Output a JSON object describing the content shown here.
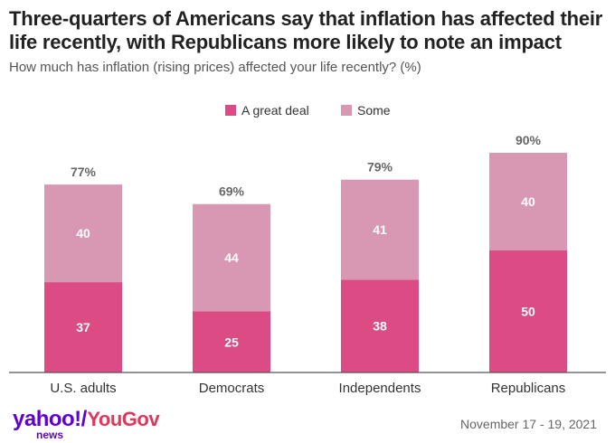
{
  "title": "Three-quarters of Americans say that inflation has affected their life recently, with Republicans more likely to note an impact",
  "subtitle": "How much has inflation (rising prices) affected your life recently? (%)",
  "footer": {
    "date": "November 17 - 19, 2021",
    "logo_yahoo": "yahoo!",
    "logo_slash": "/",
    "logo_yougov": "YouGov",
    "logo_news": "news"
  },
  "colors": {
    "great_deal": "#dd4b85",
    "some": "#d898b3",
    "total_label": "#666666",
    "axis": "#555555"
  },
  "chart_data": {
    "type": "bar",
    "stacked": true,
    "categories": [
      "U.S. adults",
      "Democrats",
      "Independents",
      "Republicans"
    ],
    "series": [
      {
        "name": "A great deal",
        "values": [
          37,
          25,
          38,
          50
        ]
      },
      {
        "name": "Some",
        "values": [
          40,
          44,
          41,
          40
        ]
      }
    ],
    "totals": [
      "77%",
      "69%",
      "79%",
      "90%"
    ],
    "ylim": [
      0,
      100
    ],
    "legend": "top-center",
    "grid": false
  }
}
